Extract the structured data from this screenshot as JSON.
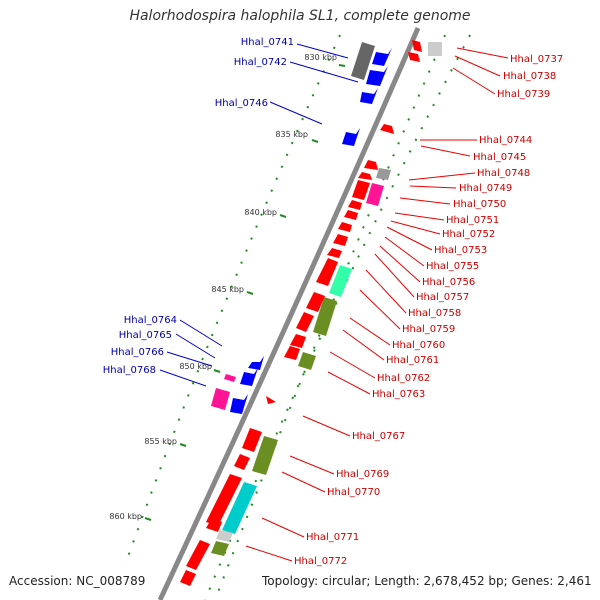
{
  "title": "Halorhodospira halophila SL1, complete genome",
  "footer": {
    "accession": "Accession: NC_008789",
    "topology": "Topology: circular; Length: 2,678,452 bp; Genes: 2,461"
  },
  "colors": {
    "forward_cds": "#0000ff",
    "reverse_cds": "#ff0000",
    "forward_label": "#0000aa",
    "reverse_label": "#cc0000",
    "backbone": "#777777",
    "tick": "#228b22",
    "cog_gray": "#666666",
    "cog_lightgray": "#cccccc",
    "cog_green": "#6b8e23",
    "cog_mint": "#33ffaa",
    "cog_cyan": "#00cccc",
    "cog_magenta": "#ff1493"
  },
  "kbp_marks": [
    {
      "label": "830 kbp",
      "pos_kbp": 830
    },
    {
      "label": "835 kbp",
      "pos_kbp": 835
    },
    {
      "label": "840 kbp",
      "pos_kbp": 840
    },
    {
      "label": "845 kbp",
      "pos_kbp": 845
    },
    {
      "label": "850 kbp",
      "pos_kbp": 850
    },
    {
      "label": "855 kbp",
      "pos_kbp": 855
    },
    {
      "label": "860 kbp",
      "pos_kbp": 860
    }
  ],
  "forward_labels": [
    "Hhal_0741",
    "Hhal_0742",
    "Hhal_0746",
    "Hhal_0764",
    "Hhal_0765",
    "Hhal_0766",
    "Hhal_0768"
  ],
  "reverse_labels": [
    "Hhal_0737",
    "Hhal_0738",
    "Hhal_0739",
    "Hhal_0744",
    "Hhal_0745",
    "Hhal_0748",
    "Hhal_0749",
    "Hhal_0750",
    "Hhal_0751",
    "Hhal_0752",
    "Hhal_0753",
    "Hhal_0755",
    "Hhal_0756",
    "Hhal_0757",
    "Hhal_0758",
    "Hhal_0759",
    "Hhal_0760",
    "Hhal_0761",
    "Hhal_0762",
    "Hhal_0763",
    "Hhal_0767",
    "Hhal_0769",
    "Hhal_0770",
    "Hhal_0771",
    "Hhal_0772"
  ]
}
